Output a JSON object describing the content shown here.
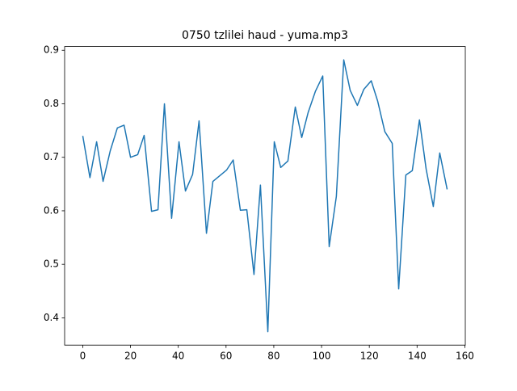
{
  "chart_data": {
    "type": "line",
    "title": "0750 tzlilei haud - yuma.mp3",
    "series": [
      {
        "color": "#1f77b4",
        "x": [
          0,
          3,
          5.8,
          8.5,
          11.5,
          14.5,
          17.3,
          20,
          23,
          25.7,
          28.8,
          31.5,
          34.2,
          37.2,
          40.3,
          43,
          46,
          48.7,
          51.8,
          54.5,
          57.2,
          60.2,
          63,
          66,
          68.7,
          71.7,
          74.4,
          77.5,
          80.2,
          82.9,
          85.9,
          89,
          91.7,
          94.4,
          97.4,
          100.5,
          103.2,
          106.2,
          109.3,
          112,
          115,
          117.7,
          120.8,
          123.5,
          126.5,
          129.6,
          132.3,
          135.3,
          138,
          141,
          143.8,
          146.8,
          149.5,
          152.6
        ],
        "values": [
          0.74,
          0.662,
          0.729,
          0.655,
          0.712,
          0.755,
          0.76,
          0.7,
          0.705,
          0.741,
          0.599,
          0.602,
          0.8,
          0.586,
          0.729,
          0.637,
          0.668,
          0.768,
          0.558,
          0.655,
          0.665,
          0.676,
          0.695,
          0.601,
          0.602,
          0.481,
          0.648,
          0.374,
          0.729,
          0.681,
          0.693,
          0.794,
          0.737,
          0.784,
          0.823,
          0.852,
          0.533,
          0.627,
          0.882,
          0.825,
          0.797,
          0.827,
          0.843,
          0.805,
          0.748,
          0.726,
          0.454,
          0.667,
          0.675,
          0.77,
          0.678,
          0.608,
          0.708,
          0.64
        ]
      }
    ],
    "xlim": [
      -7.6,
      160.2
    ],
    "ylim": [
      0.349,
      0.907
    ],
    "xticks": [
      0,
      20,
      40,
      60,
      80,
      100,
      120,
      140,
      160
    ],
    "yticks": [
      0.4,
      0.5,
      0.6,
      0.7,
      0.8,
      0.9
    ]
  }
}
